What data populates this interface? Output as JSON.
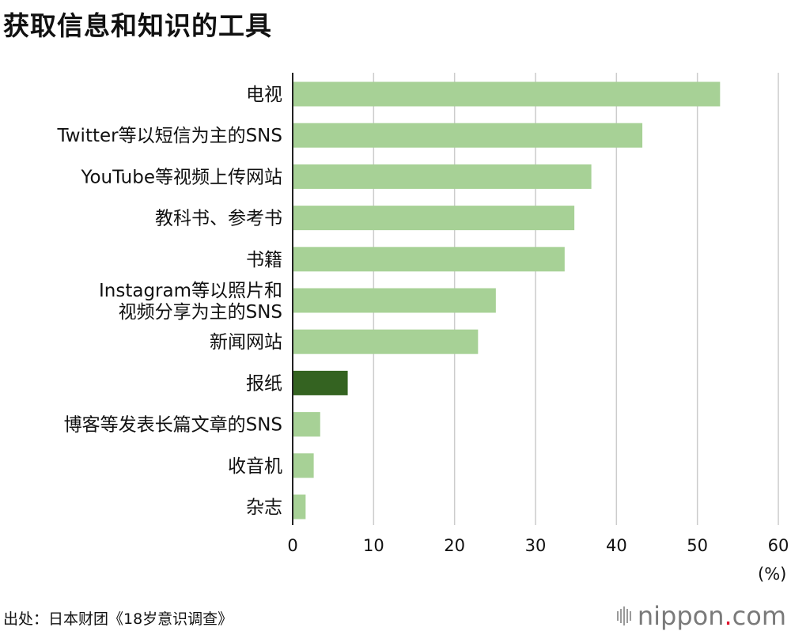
{
  "title": "获取信息和知识的工具",
  "source": "出处：日本财团《18岁意识调查》",
  "brand": {
    "name": "nippon",
    "dot": ".",
    "suffix": "com"
  },
  "unit": "(%)",
  "colors": {
    "bar": "#a7d196",
    "highlight": "#346321",
    "grid": "#cccccc",
    "axis": "#222222",
    "brand_dot": "#e0142d"
  },
  "chart_data": {
    "type": "bar",
    "orientation": "horizontal",
    "title": "获取信息和知识的工具",
    "categories": [
      "电视",
      "Twitter等以短信为主的SNS",
      "YouTube等视频上传网站",
      "教科书、参考书",
      "书籍",
      [
        "Instagram等以照片和",
        "视频分享为主的SNS"
      ],
      "新闻网站",
      "报纸",
      "博客等发表长篇文章的SNS",
      "收音机",
      "杂志"
    ],
    "values": [
      52.8,
      43.2,
      36.9,
      34.8,
      33.6,
      25.1,
      22.9,
      6.8,
      3.4,
      2.6,
      1.6
    ],
    "highlight_index": 7,
    "xlim": [
      0,
      60
    ],
    "xticks": [
      "0",
      "10",
      "20",
      "30",
      "40",
      "50",
      "60"
    ],
    "xunit": "(%)",
    "grid": true
  }
}
